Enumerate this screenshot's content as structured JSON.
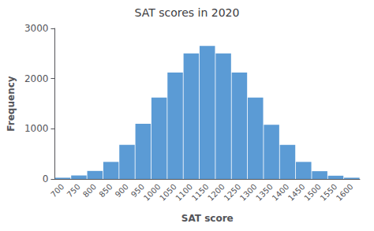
{
  "chart_data": {
    "type": "bar",
    "title": "SAT scores in 2020",
    "xlabel": "SAT score",
    "ylabel": "Frequency",
    "categories": [
      700,
      750,
      800,
      850,
      900,
      950,
      1000,
      1050,
      1100,
      1150,
      1200,
      1250,
      1300,
      1350,
      1400,
      1450,
      1500,
      1550,
      1600
    ],
    "values": [
      25,
      70,
      160,
      340,
      680,
      1100,
      1620,
      2120,
      2500,
      2650,
      2500,
      2120,
      1620,
      1080,
      680,
      340,
      155,
      65,
      25
    ],
    "color": "#5B9BD5",
    "ylim": [
      0,
      3000
    ],
    "yticks": [
      0,
      1000,
      2000,
      3000
    ],
    "grid": false
  }
}
